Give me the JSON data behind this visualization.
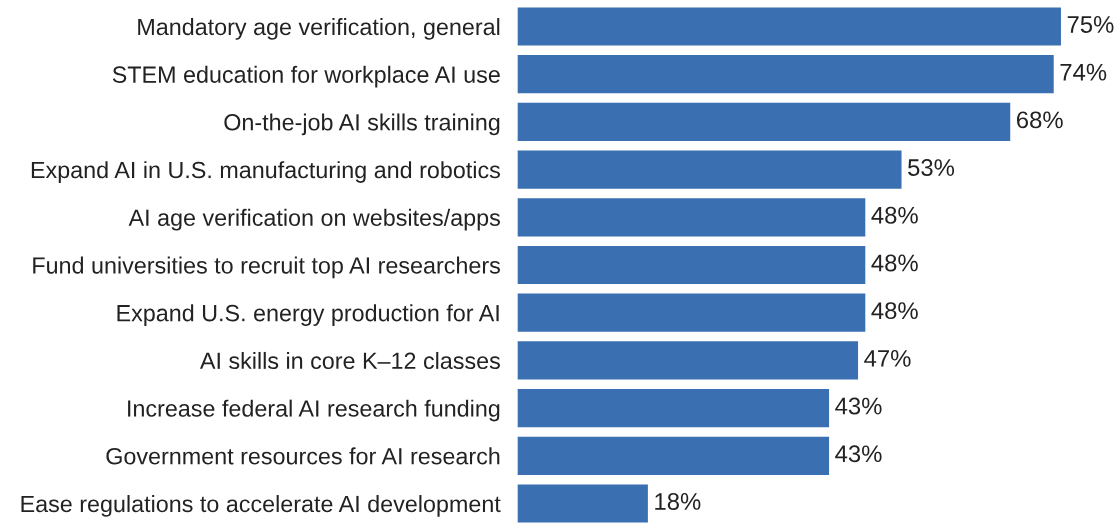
{
  "chart_data": {
    "type": "bar",
    "orientation": "horizontal",
    "categories": [
      "Mandatory age verification, general",
      "STEM education for workplace AI use",
      "On-the-job AI skills training",
      "Expand AI in U.S. manufacturing and robotics",
      "AI age verification on websites/apps",
      "Fund universities to recruit top AI researchers",
      "Expand U.S. energy production for AI",
      "AI skills in core K–12 classes",
      "Increase federal AI research funding",
      "Government resources for AI research",
      "Ease regulations to accelerate AI development"
    ],
    "values": [
      75,
      74,
      68,
      53,
      48,
      48,
      48,
      47,
      43,
      43,
      18
    ],
    "value_labels": [
      "75%",
      "74%",
      "68%",
      "53%",
      "48%",
      "48%",
      "48%",
      "47%",
      "43%",
      "43%",
      "18%"
    ],
    "color": "#3a6fb2",
    "grid": false,
    "legend": false
  }
}
